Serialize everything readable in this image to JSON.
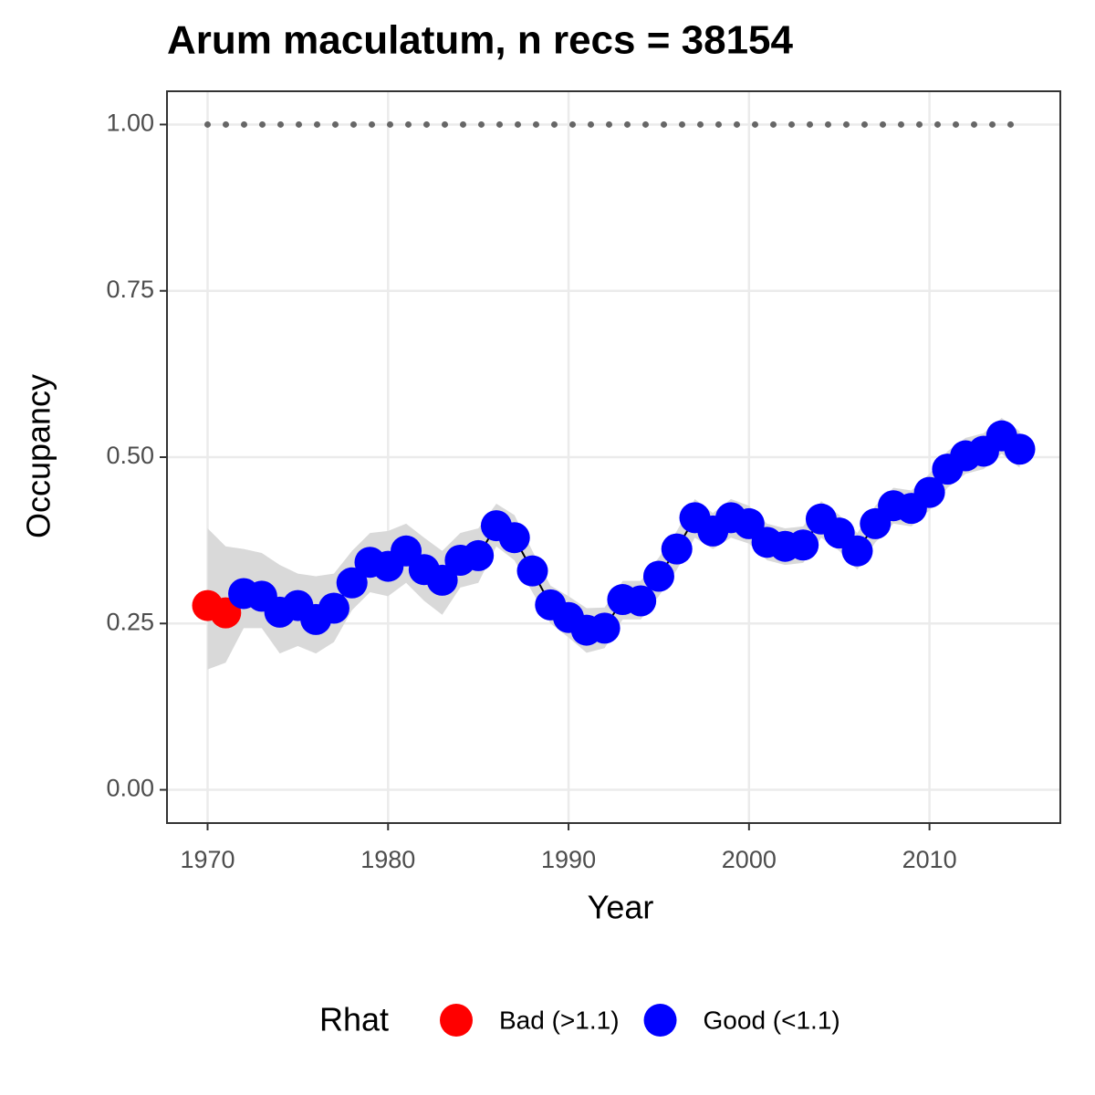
{
  "chart_data": {
    "type": "line",
    "title": "Arum maculatum, n recs = 38154",
    "x_label": "Year",
    "y_label": "Occupancy",
    "xlim": [
      1967.75,
      2017.25
    ],
    "xticks": [
      1970,
      1980,
      1990,
      2000,
      2010
    ],
    "ylim": [
      -0.05,
      1.05
    ],
    "yticks": [
      {
        "value": 0,
        "label": "0.00"
      },
      {
        "value": 0.25,
        "label": "0.25"
      },
      {
        "value": 0.5,
        "label": "0.50"
      },
      {
        "value": 0.75,
        "label": "0.75"
      },
      {
        "value": 1,
        "label": "1.00"
      }
    ],
    "grid": true,
    "legend_title": "Rhat",
    "legend_position": "bottom",
    "reference_line": {
      "y": 1,
      "x": [
        1970,
        2015
      ],
      "color": "#666666"
    },
    "ribbon": {
      "color": "#d9d9d9",
      "x": [
        1970,
        1971,
        1972,
        1973,
        1974,
        1975,
        1976,
        1977,
        1978,
        1979,
        1980,
        1981,
        1982,
        1983,
        1984,
        1985,
        1986,
        1987,
        1988,
        1989,
        1990,
        1991,
        1992,
        1993,
        1994,
        1995,
        1996,
        1997,
        1998,
        1999,
        2000,
        2001,
        2002,
        2003,
        2004,
        2005,
        2006,
        2007,
        2008,
        2009,
        2010,
        2011,
        2012,
        2013,
        2014,
        2015
      ],
      "lower": [
        0.181,
        0.191,
        0.243,
        0.243,
        0.205,
        0.216,
        0.205,
        0.222,
        0.27,
        0.297,
        0.291,
        0.311,
        0.284,
        0.263,
        0.304,
        0.311,
        0.366,
        0.345,
        0.297,
        0.25,
        0.229,
        0.206,
        0.213,
        0.256,
        0.256,
        0.291,
        0.331,
        0.379,
        0.362,
        0.379,
        0.37,
        0.345,
        0.338,
        0.341,
        0.379,
        0.359,
        0.331,
        0.372,
        0.4,
        0.396,
        0.42,
        0.454,
        0.475,
        0.482,
        0.505,
        0.484
      ],
      "upper": [
        0.393,
        0.366,
        0.362,
        0.356,
        0.338,
        0.325,
        0.321,
        0.325,
        0.359,
        0.386,
        0.389,
        0.4,
        0.379,
        0.359,
        0.386,
        0.393,
        0.43,
        0.413,
        0.359,
        0.307,
        0.291,
        0.273,
        0.274,
        0.314,
        0.314,
        0.349,
        0.389,
        0.437,
        0.416,
        0.437,
        0.427,
        0.4,
        0.393,
        0.396,
        0.434,
        0.413,
        0.386,
        0.427,
        0.454,
        0.45,
        0.475,
        0.509,
        0.529,
        0.536,
        0.559,
        0.539
      ]
    },
    "series": [
      {
        "name": "Bad (>1.1)",
        "color": "#ff0000",
        "x": [
          1970,
          1971
        ],
        "values": [
          0.277,
          0.266
        ]
      },
      {
        "name": "Good (<1.1)",
        "color": "#0000ff",
        "x": [
          1972,
          1973,
          1974,
          1975,
          1976,
          1977,
          1978,
          1979,
          1980,
          1981,
          1982,
          1983,
          1984,
          1985,
          1986,
          1987,
          1988,
          1989,
          1990,
          1991,
          1992,
          1993,
          1994,
          1995,
          1996,
          1997,
          1998,
          1999,
          2000,
          2001,
          2002,
          2003,
          2004,
          2005,
          2006,
          2007,
          2008,
          2009,
          2010,
          2011,
          2012,
          2013,
          2014,
          2015
        ],
        "values": [
          0.295,
          0.291,
          0.267,
          0.277,
          0.256,
          0.273,
          0.311,
          0.342,
          0.336,
          0.359,
          0.331,
          0.315,
          0.345,
          0.352,
          0.397,
          0.379,
          0.329,
          0.278,
          0.259,
          0.24,
          0.243,
          0.286,
          0.284,
          0.321,
          0.362,
          0.409,
          0.389,
          0.409,
          0.4,
          0.372,
          0.366,
          0.368,
          0.407,
          0.386,
          0.359,
          0.4,
          0.427,
          0.423,
          0.447,
          0.482,
          0.502,
          0.509,
          0.532,
          0.512
        ]
      }
    ]
  }
}
